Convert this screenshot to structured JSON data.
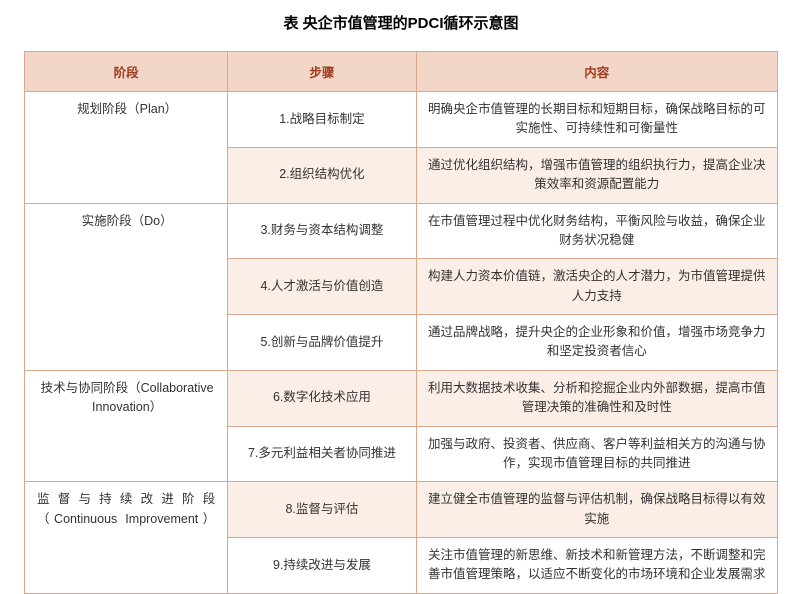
{
  "title": "表 央企市值管理的PDCI循环示意图",
  "columns": [
    "阶段",
    "步骤",
    "内容"
  ],
  "colors": {
    "header_bg": "#f2d7c9",
    "header_text": "#a03c1e",
    "border": "#d9a88f",
    "alt_row_bg": "#fbeee6",
    "background": "#ffffff"
  },
  "phases": [
    {
      "name": "规划阶段（Plan）",
      "rows": [
        {
          "step": "1.战略目标制定",
          "content": "明确央企市值管理的长期目标和短期目标，确保战略目标的可实施性、可持续性和可衡量性",
          "alt": false
        },
        {
          "step": "2.组织结构优化",
          "content": "通过优化组织结构，增强市值管理的组织执行力，提高企业决策效率和资源配置能力",
          "alt": true
        }
      ]
    },
    {
      "name": "实施阶段（Do）",
      "rows": [
        {
          "step": "3.财务与资本结构调整",
          "content": "在市值管理过程中优化财务结构，平衡风险与收益，确保企业财务状况稳健",
          "alt": false
        },
        {
          "step": "4.人才激活与价值创造",
          "content": "构建人力资本价值链，激活央企的人才潜力，为市值管理提供人力支持",
          "alt": true
        },
        {
          "step": "5.创新与品牌价值提升",
          "content": "通过品牌战略，提升央企的企业形象和价值，增强市场竞争力和坚定投资者信心",
          "alt": false
        }
      ]
    },
    {
      "name": "技术与协同阶段（Collaborative Innovation）",
      "rows": [
        {
          "step": "6.数字化技术应用",
          "content": "利用大数据技术收集、分析和挖掘企业内外部数据，提高市值管理决策的准确性和及时性",
          "alt": true
        },
        {
          "step": "7.多元利益相关者协同推进",
          "content": "加强与政府、投资者、供应商、客户等利益相关方的沟通与协作，实现市值管理目标的共同推进",
          "alt": false
        }
      ]
    },
    {
      "name": "监督与持续改进阶段（Continuous Improvement）",
      "justify": true,
      "rows": [
        {
          "step": "8.监督与评估",
          "content": "建立健全市值管理的监督与评估机制，确保战略目标得以有效实施",
          "alt": true
        },
        {
          "step": "9.持续改进与发展",
          "content": "关注市值管理的新思维、新技术和新管理方法，不断调整和完善市值管理策略，以适应不断变化的市场环境和企业发展需求",
          "alt": false
        }
      ]
    }
  ]
}
